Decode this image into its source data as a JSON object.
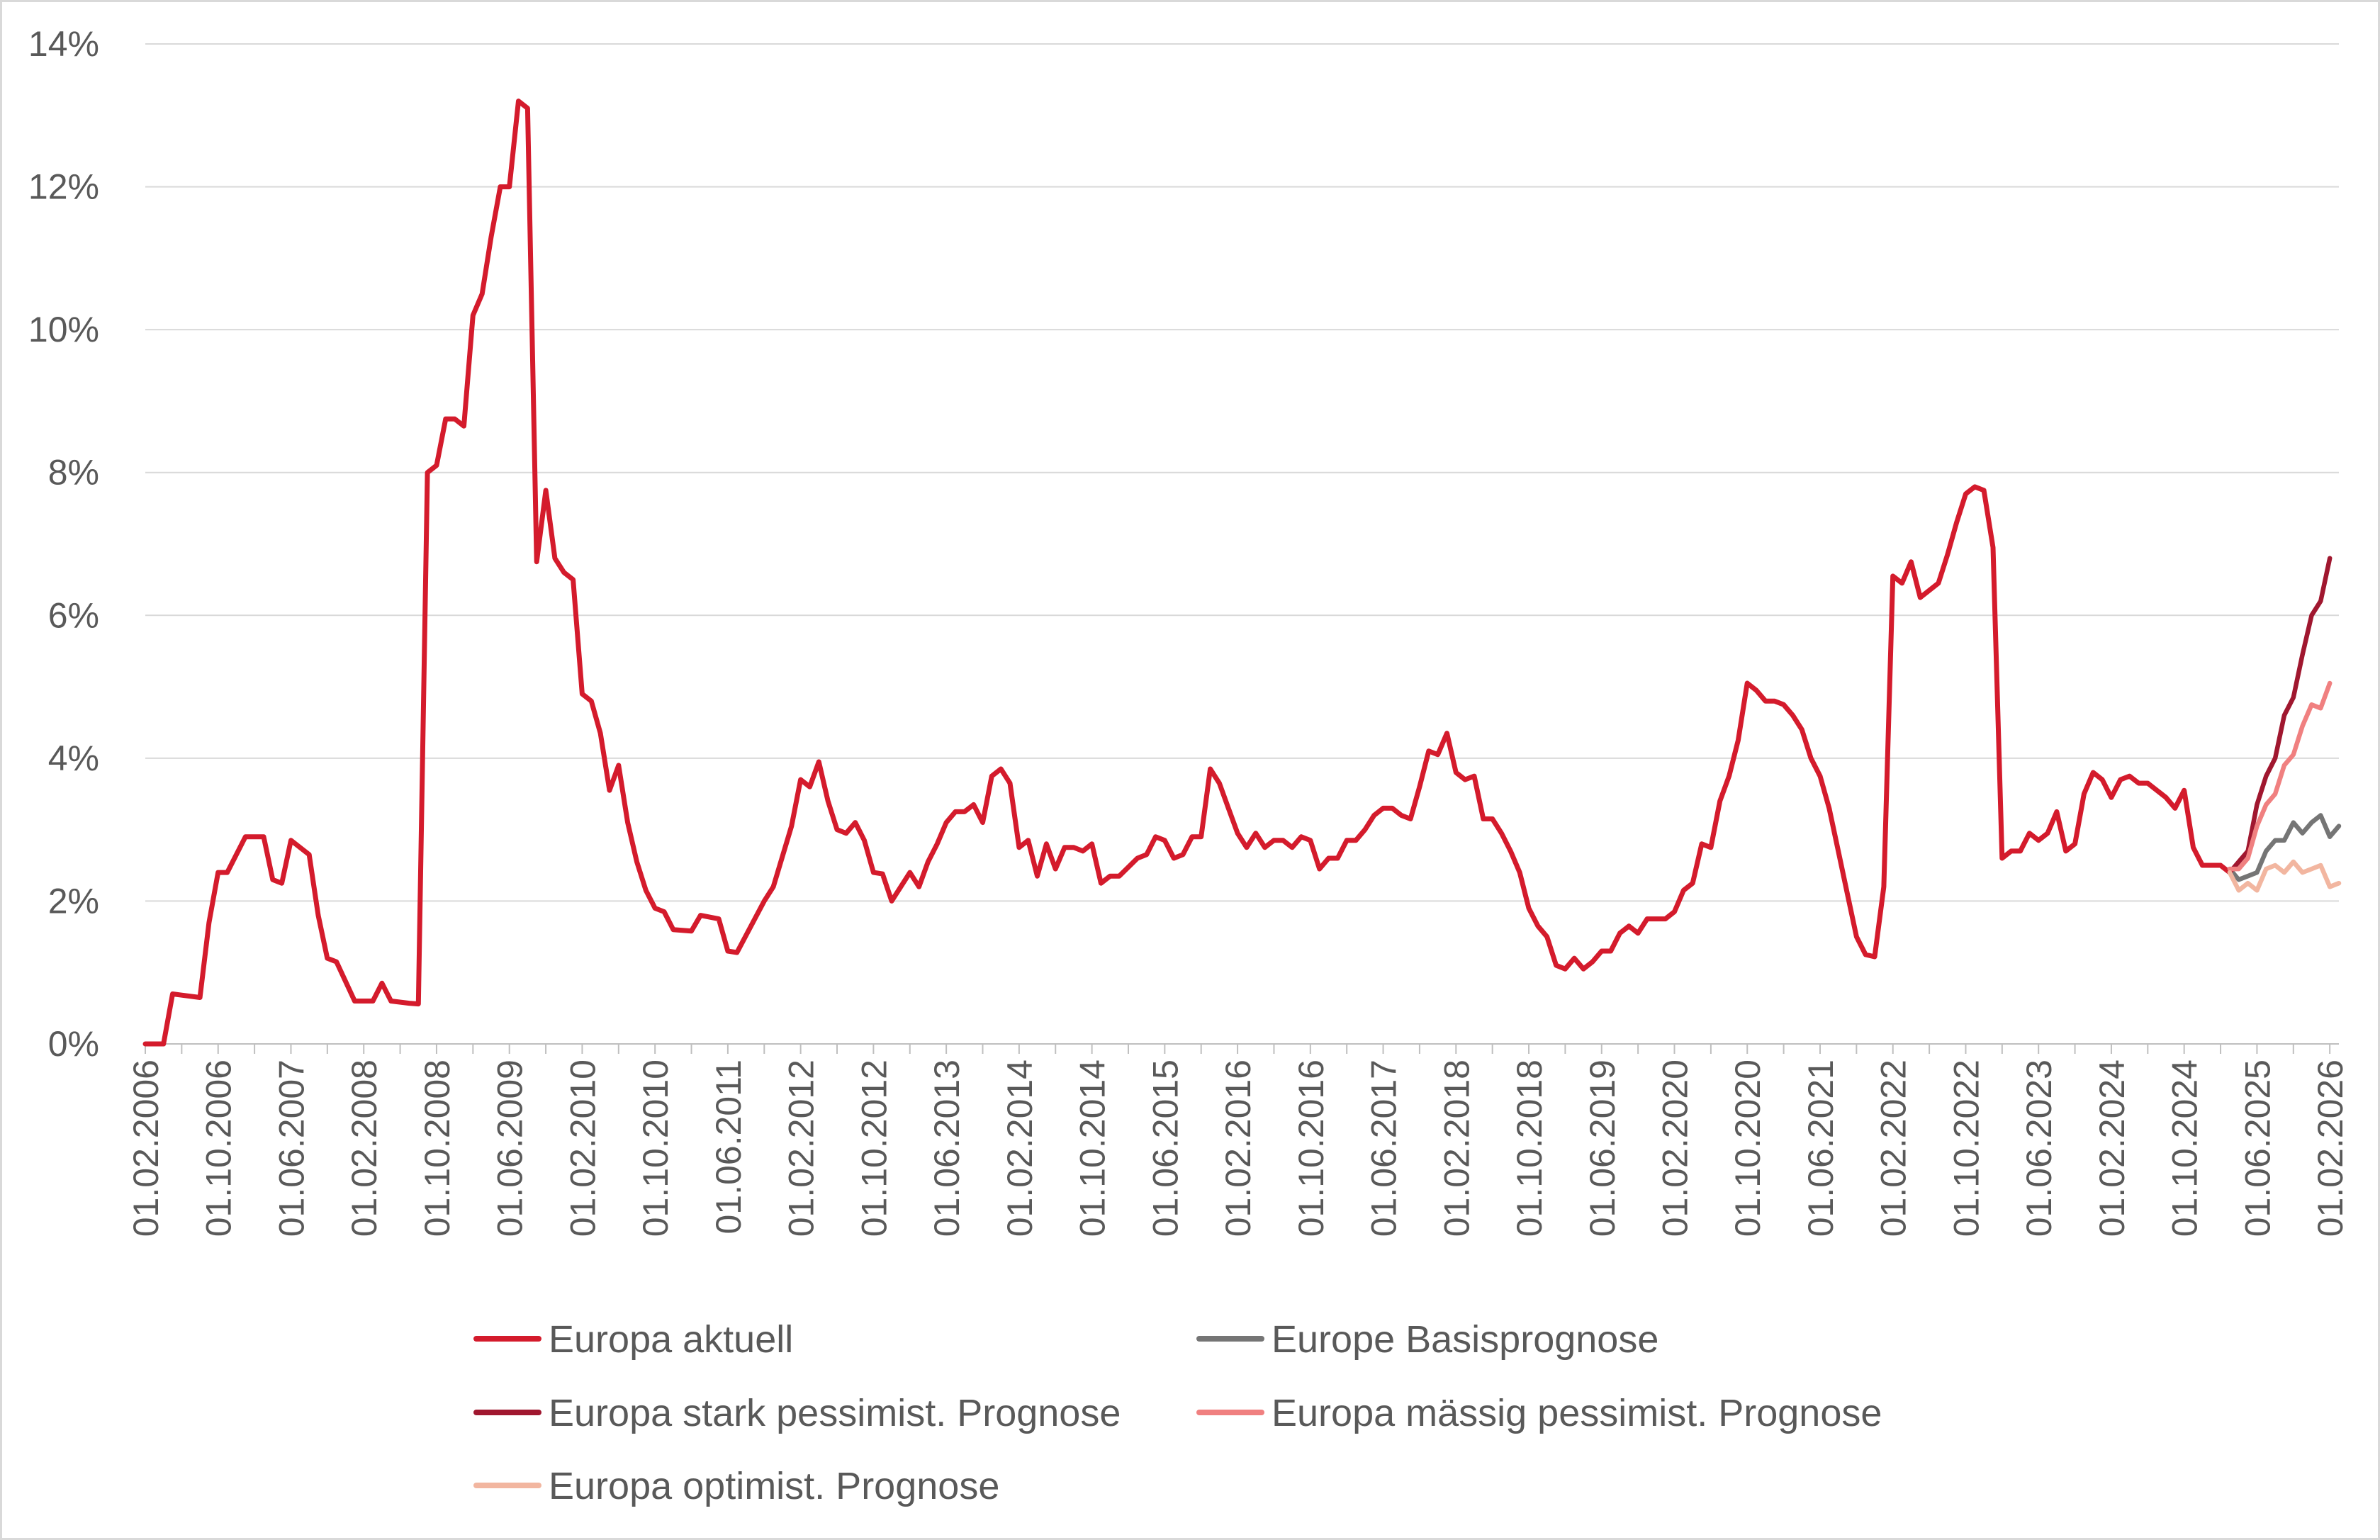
{
  "chart_data": {
    "type": "line",
    "title": "",
    "xlabel": "",
    "ylabel": "",
    "ylim": [
      0,
      14
    ],
    "y_ticks": [
      "0%",
      "2%",
      "4%",
      "6%",
      "8%",
      "10%",
      "12%",
      "14%"
    ],
    "grid": "horizontal",
    "legend_position": "bottom",
    "x_ticks": [
      "01.02.2006",
      "01.10.2006",
      "01.06.2007",
      "01.02.2008",
      "01.10.2008",
      "01.06.2009",
      "01.02.2010",
      "01.10.2010",
      "01.06.2011",
      "01.02.2012",
      "01.10.2012",
      "01.06.2013",
      "01.02.2014",
      "01.10.2014",
      "01.06.2015",
      "01.02.2016",
      "01.10.2016",
      "01.06.2017",
      "01.02.2018",
      "01.10.2018",
      "01.06.2019",
      "01.02.2020",
      "01.10.2020",
      "01.06.2021",
      "01.02.2022",
      "01.10.2022",
      "01.06.2023",
      "01.02.2024",
      "01.10.2024",
      "01.06.2025",
      "01.02.2026"
    ],
    "series": [
      {
        "name": "Europa aktuell",
        "color": "#d41b2c",
        "points": [
          [
            "2006-02",
            0.0
          ],
          [
            "2006-04",
            0.0
          ],
          [
            "2006-05",
            0.7
          ],
          [
            "2006-08",
            0.65
          ],
          [
            "2006-09",
            1.7
          ],
          [
            "2006-10",
            2.4
          ],
          [
            "2006-11",
            2.4
          ],
          [
            "2007-01",
            2.9
          ],
          [
            "2007-03",
            2.9
          ],
          [
            "2007-04",
            2.3
          ],
          [
            "2007-05",
            2.25
          ],
          [
            "2007-06",
            2.85
          ],
          [
            "2007-08",
            2.65
          ],
          [
            "2007-09",
            1.8
          ],
          [
            "2007-10",
            1.2
          ],
          [
            "2007-11",
            1.15
          ],
          [
            "2008-01",
            0.6
          ],
          [
            "2008-03",
            0.6
          ],
          [
            "2008-04",
            0.85
          ],
          [
            "2008-05",
            0.6
          ],
          [
            "2008-07",
            0.57
          ],
          [
            "2008-08",
            0.56
          ],
          [
            "2008-09",
            8.0
          ],
          [
            "2008-10",
            8.1
          ],
          [
            "2008-11",
            8.75
          ],
          [
            "2008-12",
            8.75
          ],
          [
            "2009-01",
            8.65
          ],
          [
            "2009-02",
            10.2
          ],
          [
            "2009-03",
            10.5
          ],
          [
            "2009-04",
            11.3
          ],
          [
            "2009-05",
            12.0
          ],
          [
            "2009-06",
            12.0
          ],
          [
            "2009-07",
            13.2
          ],
          [
            "2009-08",
            13.1
          ],
          [
            "2009-09",
            6.75
          ],
          [
            "2009-10",
            7.75
          ],
          [
            "2009-11",
            6.8
          ],
          [
            "2009-12",
            6.6
          ],
          [
            "2010-01",
            6.5
          ],
          [
            "2010-02",
            4.9
          ],
          [
            "2010-03",
            4.8
          ],
          [
            "2010-04",
            4.35
          ],
          [
            "2010-05",
            3.55
          ],
          [
            "2010-06",
            3.9
          ],
          [
            "2010-07",
            3.1
          ],
          [
            "2010-08",
            2.55
          ],
          [
            "2010-09",
            2.15
          ],
          [
            "2010-10",
            1.9
          ],
          [
            "2010-11",
            1.85
          ],
          [
            "2010-12",
            1.6
          ],
          [
            "2011-02",
            1.58
          ],
          [
            "2011-03",
            1.8
          ],
          [
            "2011-05",
            1.75
          ],
          [
            "2011-06",
            1.3
          ],
          [
            "2011-07",
            1.28
          ],
          [
            "2011-10",
            2.0
          ],
          [
            "2011-11",
            2.2
          ],
          [
            "2012-01",
            3.05
          ],
          [
            "2012-02",
            3.7
          ],
          [
            "2012-03",
            3.6
          ],
          [
            "2012-04",
            3.95
          ],
          [
            "2012-05",
            3.4
          ],
          [
            "2012-06",
            3.0
          ],
          [
            "2012-07",
            2.95
          ],
          [
            "2012-08",
            3.1
          ],
          [
            "2012-09",
            2.85
          ],
          [
            "2012-10",
            2.4
          ],
          [
            "2012-11",
            2.38
          ],
          [
            "2012-12",
            2.0
          ],
          [
            "2013-02",
            2.4
          ],
          [
            "2013-03",
            2.2
          ],
          [
            "2013-04",
            2.55
          ],
          [
            "2013-05",
            2.8
          ],
          [
            "2013-06",
            3.1
          ],
          [
            "2013-07",
            3.25
          ],
          [
            "2013-08",
            3.25
          ],
          [
            "2013-09",
            3.35
          ],
          [
            "2013-10",
            3.1
          ],
          [
            "2013-11",
            3.75
          ],
          [
            "2013-12",
            3.85
          ],
          [
            "2014-01",
            3.65
          ],
          [
            "2014-02",
            2.75
          ],
          [
            "2014-03",
            2.85
          ],
          [
            "2014-04",
            2.35
          ],
          [
            "2014-05",
            2.8
          ],
          [
            "2014-06",
            2.45
          ],
          [
            "2014-07",
            2.75
          ],
          [
            "2014-08",
            2.75
          ],
          [
            "2014-09",
            2.7
          ],
          [
            "2014-10",
            2.8
          ],
          [
            "2014-11",
            2.25
          ],
          [
            "2014-12",
            2.35
          ],
          [
            "2015-01",
            2.35
          ],
          [
            "2015-03",
            2.6
          ],
          [
            "2015-04",
            2.65
          ],
          [
            "2015-05",
            2.9
          ],
          [
            "2015-06",
            2.85
          ],
          [
            "2015-07",
            2.6
          ],
          [
            "2015-08",
            2.65
          ],
          [
            "2015-09",
            2.9
          ],
          [
            "2015-10",
            2.9
          ],
          [
            "2015-11",
            3.85
          ],
          [
            "2015-12",
            3.65
          ],
          [
            "2016-01",
            3.3
          ],
          [
            "2016-02",
            2.95
          ],
          [
            "2016-03",
            2.75
          ],
          [
            "2016-04",
            2.95
          ],
          [
            "2016-05",
            2.75
          ],
          [
            "2016-06",
            2.85
          ],
          [
            "2016-07",
            2.85
          ],
          [
            "2016-08",
            2.75
          ],
          [
            "2016-09",
            2.9
          ],
          [
            "2016-10",
            2.85
          ],
          [
            "2016-11",
            2.45
          ],
          [
            "2016-12",
            2.6
          ],
          [
            "2017-01",
            2.6
          ],
          [
            "2017-02",
            2.85
          ],
          [
            "2017-03",
            2.85
          ],
          [
            "2017-04",
            3.0
          ],
          [
            "2017-05",
            3.2
          ],
          [
            "2017-06",
            3.3
          ],
          [
            "2017-07",
            3.3
          ],
          [
            "2017-08",
            3.2
          ],
          [
            "2017-09",
            3.15
          ],
          [
            "2017-10",
            3.6
          ],
          [
            "2017-11",
            4.1
          ],
          [
            "2017-12",
            4.05
          ],
          [
            "2018-01",
            4.35
          ],
          [
            "2018-02",
            3.8
          ],
          [
            "2018-03",
            3.7
          ],
          [
            "2018-04",
            3.75
          ],
          [
            "2018-05",
            3.15
          ],
          [
            "2018-06",
            3.15
          ],
          [
            "2018-07",
            2.95
          ],
          [
            "2018-08",
            2.7
          ],
          [
            "2018-09",
            2.4
          ],
          [
            "2018-10",
            1.9
          ],
          [
            "2018-11",
            1.65
          ],
          [
            "2018-12",
            1.5
          ],
          [
            "2019-01",
            1.1
          ],
          [
            "2019-02",
            1.05
          ],
          [
            "2019-03",
            1.2
          ],
          [
            "2019-04",
            1.05
          ],
          [
            "2019-05",
            1.15
          ],
          [
            "2019-06",
            1.3
          ],
          [
            "2019-07",
            1.3
          ],
          [
            "2019-08",
            1.55
          ],
          [
            "2019-09",
            1.65
          ],
          [
            "2019-10",
            1.55
          ],
          [
            "2019-11",
            1.75
          ],
          [
            "2019-12",
            1.75
          ],
          [
            "2020-01",
            1.75
          ],
          [
            "2020-02",
            1.85
          ],
          [
            "2020-03",
            2.15
          ],
          [
            "2020-04",
            2.25
          ],
          [
            "2020-05",
            2.8
          ],
          [
            "2020-06",
            2.75
          ],
          [
            "2020-07",
            3.4
          ],
          [
            "2020-08",
            3.75
          ],
          [
            "2020-09",
            4.25
          ],
          [
            "2020-10",
            5.05
          ],
          [
            "2020-11",
            4.95
          ],
          [
            "2020-12",
            4.8
          ],
          [
            "2021-01",
            4.8
          ],
          [
            "2021-02",
            4.75
          ],
          [
            "2021-03",
            4.6
          ],
          [
            "2021-04",
            4.4
          ],
          [
            "2021-05",
            4.0
          ],
          [
            "2021-06",
            3.75
          ],
          [
            "2021-07",
            3.3
          ],
          [
            "2021-08",
            2.7
          ],
          [
            "2021-09",
            2.1
          ],
          [
            "2021-10",
            1.5
          ],
          [
            "2021-11",
            1.25
          ],
          [
            "2021-12",
            1.22
          ],
          [
            "2022-01",
            2.2
          ],
          [
            "2022-02",
            6.55
          ],
          [
            "2022-03",
            6.45
          ],
          [
            "2022-04",
            6.75
          ],
          [
            "2022-05",
            6.25
          ],
          [
            "2022-06",
            6.35
          ],
          [
            "2022-07",
            6.45
          ],
          [
            "2022-08",
            6.85
          ],
          [
            "2022-09",
            7.3
          ],
          [
            "2022-10",
            7.7
          ],
          [
            "2022-11",
            7.8
          ],
          [
            "2022-12",
            7.75
          ],
          [
            "2023-01",
            6.95
          ],
          [
            "2023-02",
            2.6
          ],
          [
            "2023-03",
            2.7
          ],
          [
            "2023-04",
            2.7
          ],
          [
            "2023-05",
            2.95
          ],
          [
            "2023-06",
            2.85
          ],
          [
            "2023-07",
            2.95
          ],
          [
            "2023-08",
            3.25
          ],
          [
            "2023-09",
            2.7
          ],
          [
            "2023-10",
            2.8
          ],
          [
            "2023-11",
            3.5
          ],
          [
            "2023-12",
            3.8
          ],
          [
            "2024-01",
            3.7
          ],
          [
            "2024-02",
            3.45
          ],
          [
            "2024-03",
            3.7
          ],
          [
            "2024-04",
            3.75
          ],
          [
            "2024-05",
            3.65
          ],
          [
            "2024-06",
            3.65
          ],
          [
            "2024-07",
            3.55
          ],
          [
            "2024-08",
            3.45
          ],
          [
            "2024-09",
            3.3
          ],
          [
            "2024-10",
            3.55
          ],
          [
            "2024-11",
            2.75
          ],
          [
            "2024-12",
            2.5
          ],
          [
            "2025-01",
            2.5
          ],
          [
            "2025-02",
            2.5
          ],
          [
            "2025-03",
            2.4
          ]
        ]
      },
      {
        "name": "Europe Basisprognose",
        "color": "#757575",
        "points": [
          [
            "2025-03",
            2.45
          ],
          [
            "2025-04",
            2.3
          ],
          [
            "2025-05",
            2.35
          ],
          [
            "2025-06",
            2.4
          ],
          [
            "2025-07",
            2.7
          ],
          [
            "2025-08",
            2.85
          ],
          [
            "2025-09",
            2.85
          ],
          [
            "2025-10",
            3.1
          ],
          [
            "2025-11",
            2.95
          ],
          [
            "2025-12",
            3.1
          ],
          [
            "2026-01",
            3.2
          ],
          [
            "2026-02",
            2.9
          ],
          [
            "2026-03",
            3.05
          ]
        ]
      },
      {
        "name": "Europa stark pessimist. Prognose",
        "color": "#a0172f",
        "points": [
          [
            "2025-03",
            2.4
          ],
          [
            "2025-04",
            2.55
          ],
          [
            "2025-05",
            2.7
          ],
          [
            "2025-06",
            3.35
          ],
          [
            "2025-07",
            3.75
          ],
          [
            "2025-08",
            4.0
          ],
          [
            "2025-09",
            4.6
          ],
          [
            "2025-10",
            4.85
          ],
          [
            "2025-11",
            5.45
          ],
          [
            "2025-12",
            6.0
          ],
          [
            "2026-01",
            6.2
          ],
          [
            "2026-02",
            6.8
          ]
        ]
      },
      {
        "name": "Europa mässig pessimist. Prognose",
        "color": "#f08080",
        "points": [
          [
            "2025-03",
            2.45
          ],
          [
            "2025-04",
            2.45
          ],
          [
            "2025-05",
            2.6
          ],
          [
            "2025-06",
            3.05
          ],
          [
            "2025-07",
            3.35
          ],
          [
            "2025-08",
            3.5
          ],
          [
            "2025-09",
            3.9
          ],
          [
            "2025-10",
            4.05
          ],
          [
            "2025-11",
            4.45
          ],
          [
            "2025-12",
            4.75
          ],
          [
            "2026-01",
            4.7
          ],
          [
            "2026-02",
            5.05
          ]
        ]
      },
      {
        "name": "Europa optimist. Prognose",
        "color": "#f2b6a0",
        "points": [
          [
            "2025-03",
            2.4
          ],
          [
            "2025-04",
            2.15
          ],
          [
            "2025-05",
            2.25
          ],
          [
            "2025-06",
            2.15
          ],
          [
            "2025-07",
            2.45
          ],
          [
            "2025-08",
            2.5
          ],
          [
            "2025-09",
            2.4
          ],
          [
            "2025-10",
            2.55
          ],
          [
            "2025-11",
            2.4
          ],
          [
            "2025-12",
            2.45
          ],
          [
            "2026-01",
            2.5
          ],
          [
            "2026-02",
            2.2
          ],
          [
            "2026-03",
            2.25
          ]
        ]
      }
    ]
  }
}
